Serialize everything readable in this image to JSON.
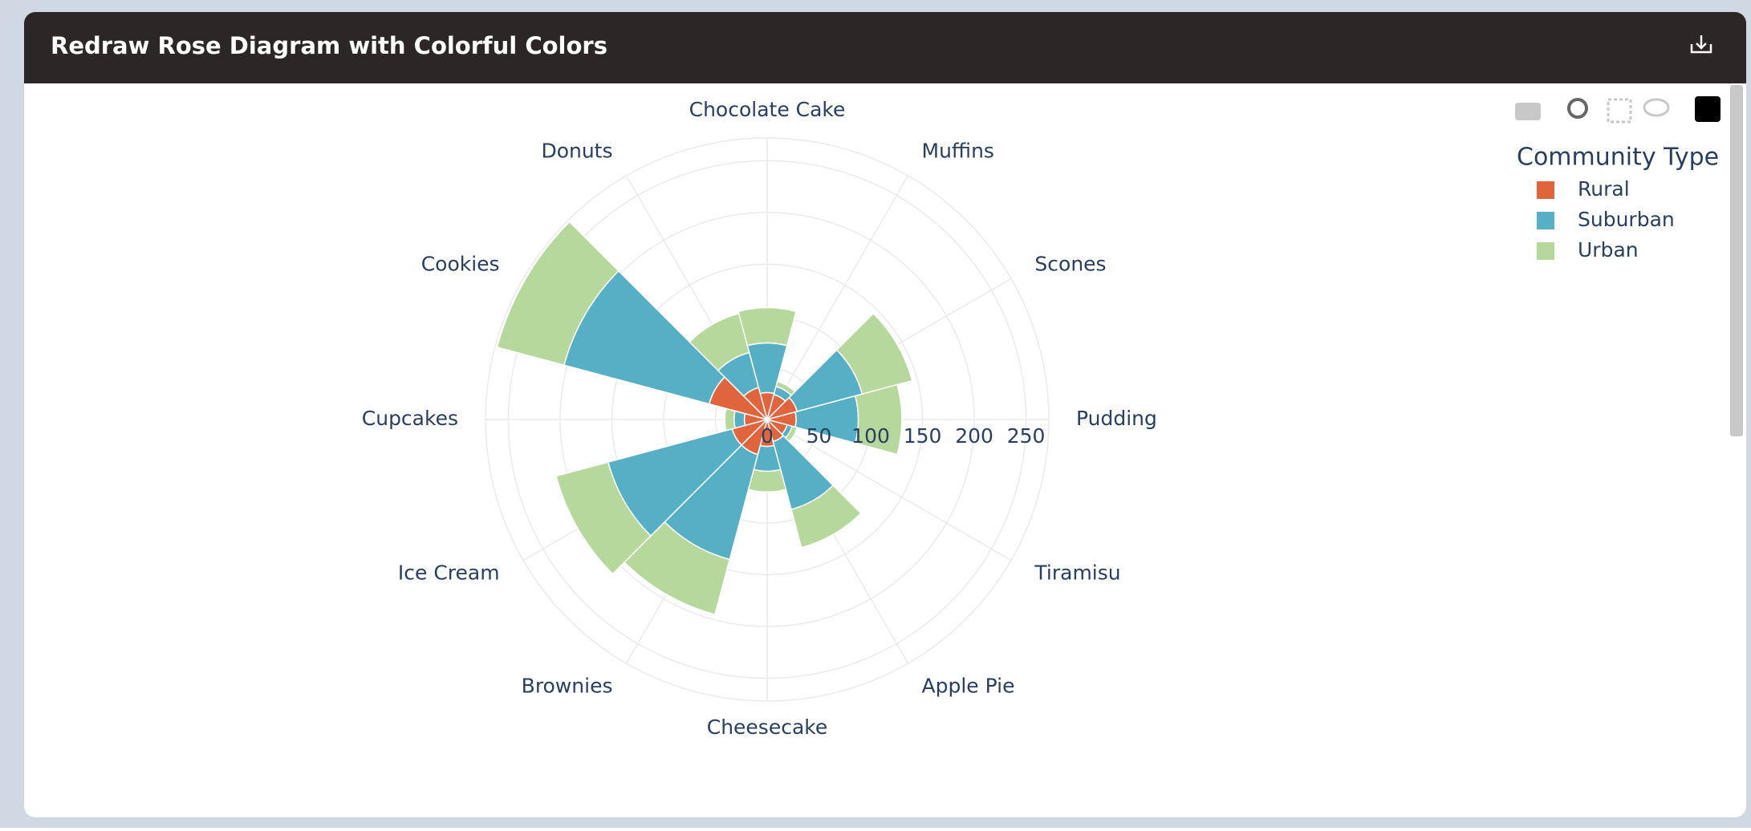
{
  "header": {
    "title": "Redraw Rose Diagram with Colorful Colors"
  },
  "chart_data": {
    "type": "barpolar",
    "categories": [
      "Chocolate Cake",
      "Muffins",
      "Scones",
      "Pudding",
      "Tiramisu",
      "Apple Pie",
      "Cheesecake",
      "Brownies",
      "Ice Cream",
      "Cupcakes",
      "Cookies",
      "Donuts"
    ],
    "series": [
      {
        "name": "Rural",
        "color": "#e0643c",
        "values": [
          26,
          25,
          30,
          28,
          20,
          22,
          26,
          35,
          35,
          22,
          58,
          32
        ]
      },
      {
        "name": "Suburban",
        "color": "#56afc4",
        "values": [
          48,
          8,
          65,
          60,
          5,
          68,
          24,
          105,
          124,
          10,
          145,
          35
        ]
      },
      {
        "name": "Urban",
        "color": "#b6d89c",
        "values": [
          34,
          5,
          50,
          42,
          5,
          38,
          20,
          55,
          52,
          9,
          67,
          39
        ]
      }
    ],
    "rlim": [
      0,
      272
    ],
    "rticks": [
      0,
      50,
      100,
      150,
      200,
      250
    ],
    "grid": true,
    "legend_title": "Community Type"
  }
}
